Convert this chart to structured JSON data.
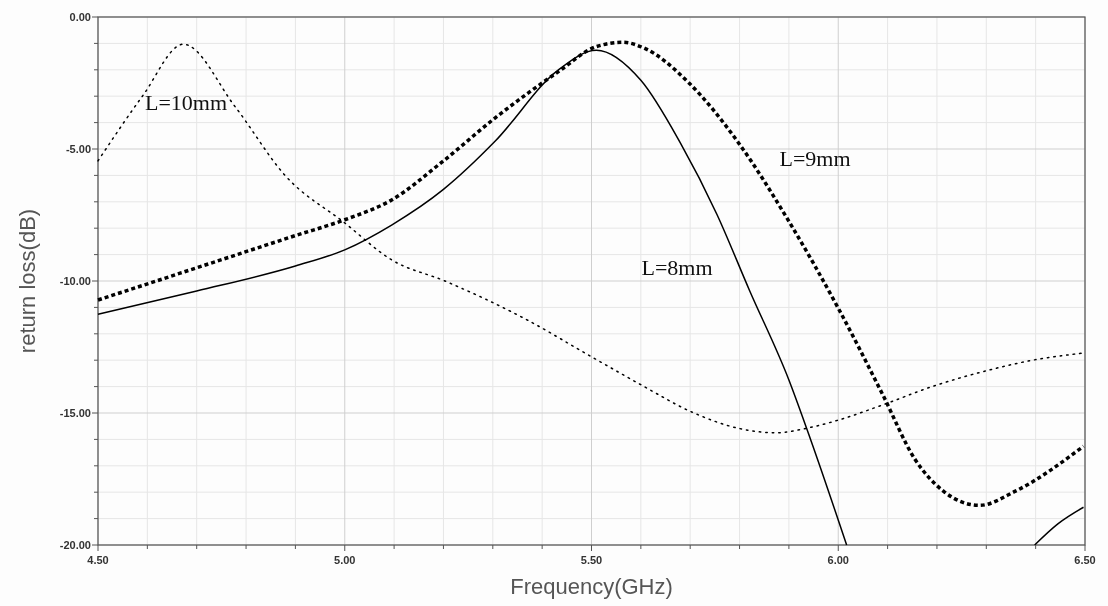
{
  "chart_data": {
    "type": "line",
    "xlabel": "Frequency(GHz)",
    "ylabel": "return loss(dB)",
    "xlim": [
      4.5,
      6.5
    ],
    "xticks": [
      {
        "value": 4.5,
        "label": "4.50"
      },
      {
        "value": 5,
        "label": "5.00"
      },
      {
        "value": 5.5,
        "label": "5.50"
      },
      {
        "value": 6,
        "label": "6.00"
      },
      {
        "value": 6.5,
        "label": "6.50"
      }
    ],
    "ylim": [
      -20,
      0
    ],
    "yticks": [
      {
        "value": -20,
        "label": "-20.00"
      },
      {
        "value": -15,
        "label": "-15.00"
      },
      {
        "value": -10,
        "label": "-10.00"
      },
      {
        "value": -5,
        "label": "-5.00"
      },
      {
        "value": 0,
        "label": "0.00"
      }
    ],
    "grid": true,
    "series": [
      {
        "name": "L=8mm",
        "color": "#000000",
        "line_style": "solid",
        "x": [
          4.5,
          4.7,
          4.9,
          5.0,
          5.095,
          5.2,
          5.305,
          5.433,
          5.51,
          5.6,
          5.68,
          5.754,
          5.82,
          5.9,
          5.945,
          6.017,
          6.2,
          6.398,
          6.445,
          6.497
        ],
        "values": [
          -11.26,
          -10.38,
          -9.43,
          -8.82,
          -7.88,
          -6.53,
          -4.7,
          -2.0,
          -1.26,
          -2.4,
          -4.77,
          -7.47,
          -10.35,
          -13.75,
          -16.06,
          -20,
          null,
          -20,
          -19.2,
          -18.57
        ]
      },
      {
        "name": "L=9mm",
        "color": "#000000",
        "line_style": "dashed",
        "x": [
          4.5,
          4.7,
          4.9,
          5.0,
          5.095,
          5.2,
          5.305,
          5.433,
          5.51,
          5.564,
          5.608,
          5.696,
          5.798,
          5.9,
          6.0,
          6.09,
          6.155,
          6.213,
          6.286,
          6.359,
          6.497
        ],
        "values": [
          -10.72,
          -9.5,
          -8.28,
          -7.68,
          -6.93,
          -5.45,
          -3.82,
          -2.07,
          -1.12,
          -0.96,
          -1.19,
          -2.47,
          -4.77,
          -7.74,
          -11.03,
          -14.3,
          -16.74,
          -17.96,
          -18.5,
          -17.96,
          -16.26
        ]
      },
      {
        "name": "L=10mm",
        "color": "#000000",
        "line_style": "dotted",
        "x": [
          4.5,
          4.59,
          4.673,
          4.778,
          4.879,
          5.0,
          5.095,
          5.203,
          5.362,
          5.5,
          5.602,
          5.704,
          5.798,
          5.872,
          5.945,
          6.0,
          6.089,
          6.19,
          6.3,
          6.394,
          6.497
        ],
        "values": [
          -5.45,
          -3.0,
          -1.03,
          -3.4,
          -6.0,
          -7.8,
          -9.2,
          -10.0,
          -11.4,
          -12.87,
          -13.95,
          -14.97,
          -15.58,
          -15.75,
          -15.54,
          -15.27,
          -14.7,
          -14.0,
          -13.4,
          -13.0,
          -12.73
        ]
      }
    ]
  }
}
